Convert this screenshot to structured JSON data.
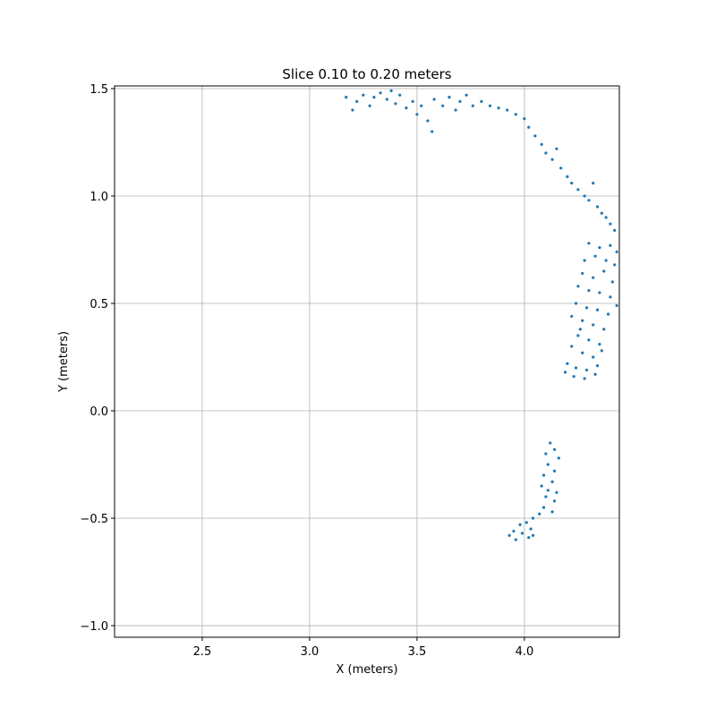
{
  "chart_data": {
    "type": "scatter",
    "title": "Slice 0.10 to 0.20 meters",
    "x_label": "X (meters)",
    "y_label": "Y (meters)",
    "color": "#1f77b4",
    "grid": true,
    "xlim": [
      2.092,
      4.442
    ],
    "ylim": [
      -1.054,
      1.5125
    ],
    "xticks": [
      2.5,
      {
        "value": 3,
        "label": "3.0"
      },
      3.5,
      {
        "value": 4,
        "label": "4.0"
      }
    ],
    "yticks": [
      {
        "value": -1,
        "label": "−1.0"
      },
      {
        "value": -0.5,
        "label": "−0.5"
      },
      {
        "value": 0,
        "label": "0.0"
      },
      0.5,
      {
        "value": 1,
        "label": "1.0"
      },
      1.5
    ],
    "x": [
      3.17,
      3.2,
      3.22,
      3.25,
      3.28,
      3.3,
      3.33,
      3.36,
      3.38,
      3.4,
      3.42,
      3.45,
      3.48,
      3.5,
      3.52,
      3.55,
      3.57,
      3.58,
      3.62,
      3.65,
      3.68,
      3.7,
      3.73,
      3.76,
      3.8,
      3.84,
      3.88,
      3.92,
      3.96,
      4.0,
      4.02,
      4.05,
      4.08,
      4.1,
      4.13,
      4.15,
      4.17,
      4.2,
      4.22,
      4.25,
      4.28,
      4.3,
      4.32,
      4.34,
      4.36,
      4.38,
      4.4,
      4.42,
      4.3,
      4.35,
      4.4,
      4.43,
      4.28,
      4.33,
      4.38,
      4.42,
      4.27,
      4.32,
      4.37,
      4.41,
      4.25,
      4.3,
      4.35,
      4.4,
      4.24,
      4.29,
      4.34,
      4.39,
      4.43,
      4.27,
      4.32,
      4.37,
      4.25,
      4.3,
      4.35,
      4.22,
      4.27,
      4.32,
      4.36,
      4.2,
      4.24,
      4.29,
      4.34,
      4.19,
      4.23,
      4.28,
      4.33,
      4.26,
      4.22,
      4.12,
      4.14,
      4.1,
      4.16,
      4.11,
      4.14,
      4.09,
      4.13,
      4.08,
      4.11,
      4.15,
      4.1,
      4.14,
      4.09,
      4.13,
      4.07,
      4.04,
      4.01,
      3.98,
      4.03,
      3.95,
      3.99,
      3.93,
      4.02,
      3.96,
      4.04
    ],
    "values": [
      1.46,
      1.4,
      1.44,
      1.47,
      1.42,
      1.46,
      1.48,
      1.45,
      1.49,
      1.43,
      1.47,
      1.41,
      1.44,
      1.38,
      1.42,
      1.35,
      1.3,
      1.45,
      1.42,
      1.46,
      1.4,
      1.44,
      1.47,
      1.42,
      1.44,
      1.42,
      1.41,
      1.4,
      1.38,
      1.36,
      1.32,
      1.28,
      1.24,
      1.2,
      1.17,
      1.22,
      1.13,
      1.09,
      1.06,
      1.03,
      1.0,
      0.98,
      1.06,
      0.95,
      0.92,
      0.9,
      0.87,
      0.84,
      0.78,
      0.76,
      0.77,
      0.74,
      0.7,
      0.72,
      0.7,
      0.68,
      0.64,
      0.62,
      0.65,
      0.6,
      0.58,
      0.56,
      0.55,
      0.53,
      0.5,
      0.48,
      0.47,
      0.45,
      0.49,
      0.42,
      0.4,
      0.38,
      0.35,
      0.33,
      0.31,
      0.3,
      0.27,
      0.25,
      0.28,
      0.22,
      0.2,
      0.19,
      0.21,
      0.18,
      0.16,
      0.15,
      0.17,
      0.38,
      0.44,
      -0.15,
      -0.18,
      -0.2,
      -0.22,
      -0.25,
      -0.28,
      -0.3,
      -0.33,
      -0.35,
      -0.37,
      -0.38,
      -0.4,
      -0.42,
      -0.45,
      -0.47,
      -0.48,
      -0.5,
      -0.52,
      -0.53,
      -0.55,
      -0.56,
      -0.57,
      -0.58,
      -0.59,
      -0.6,
      -0.58
    ]
  }
}
